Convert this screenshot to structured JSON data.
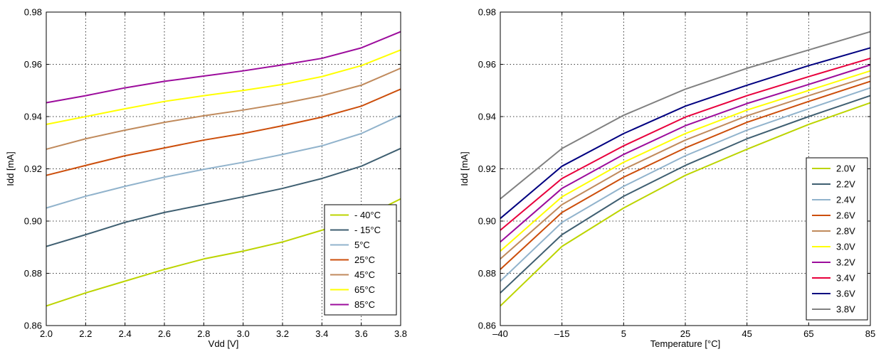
{
  "chart_data": [
    {
      "type": "line",
      "xlabel": "Vdd [V]",
      "ylabel": "Idd [mA]",
      "xlim": [
        2.0,
        3.8
      ],
      "ylim": [
        0.86,
        0.98
      ],
      "x_scale": "linear",
      "x_ticks": [
        "2.0",
        "2.2",
        "2.4",
        "2.6",
        "2.8",
        "3.0",
        "3.2",
        "3.4",
        "3.6",
        "3.8"
      ],
      "y_ticks": [
        "0.86",
        "0.88",
        "0.90",
        "0.92",
        "0.94",
        "0.96",
        "0.98"
      ],
      "x": [
        2.0,
        2.2,
        2.4,
        2.6,
        2.8,
        3.0,
        3.2,
        3.4,
        3.6,
        3.8
      ],
      "grid": true,
      "legend_position": "bottom-right",
      "series": [
        {
          "name": "- 40°C",
          "color": "#bcd400",
          "values": [
            0.8675,
            0.8725,
            0.877,
            0.8815,
            0.8855,
            0.8885,
            0.892,
            0.8965,
            0.901,
            0.9085
          ]
        },
        {
          "name": "- 15°C",
          "color": "#3f5f71",
          "values": [
            0.8903,
            0.8948,
            0.8995,
            0.9033,
            0.9063,
            0.9093,
            0.9125,
            0.9163,
            0.921,
            0.9278
          ]
        },
        {
          "name": "5°C",
          "color": "#91b3cc",
          "values": [
            0.905,
            0.9095,
            0.9133,
            0.9168,
            0.9198,
            0.9225,
            0.9255,
            0.9288,
            0.9335,
            0.9405
          ]
        },
        {
          "name": "25°C",
          "color": "#cc4e0b",
          "values": [
            0.9175,
            0.9213,
            0.925,
            0.928,
            0.931,
            0.9335,
            0.9365,
            0.9398,
            0.944,
            0.9505
          ]
        },
        {
          "name": "45°C",
          "color": "#c08a5c",
          "values": [
            0.9275,
            0.9315,
            0.9348,
            0.9378,
            0.9403,
            0.9425,
            0.945,
            0.948,
            0.952,
            0.9585
          ]
        },
        {
          "name": "65°C",
          "color": "#ffff00",
          "values": [
            0.937,
            0.94,
            0.943,
            0.9458,
            0.948,
            0.95,
            0.9523,
            0.9553,
            0.9595,
            0.9655
          ]
        },
        {
          "name": "85°C",
          "color": "#9c0c9c",
          "values": [
            0.9453,
            0.948,
            0.951,
            0.9535,
            0.9555,
            0.9575,
            0.9598,
            0.9623,
            0.9663,
            0.9725
          ]
        }
      ]
    },
    {
      "type": "line",
      "xlabel": "Temperature [°C]",
      "ylabel": "Idd [mA]",
      "xlim": [
        -40,
        85
      ],
      "ylim": [
        0.86,
        0.98
      ],
      "x_scale": "categorical (evenly spaced)",
      "categories": [
        "–40",
        "–15",
        "5",
        "25",
        "45",
        "65",
        "85"
      ],
      "y_ticks": [
        "0.86",
        "0.88",
        "0.90",
        "0.92",
        "0.94",
        "0.96",
        "0.98"
      ],
      "grid": true,
      "legend_position": "bottom-right",
      "series": [
        {
          "name": "2.0V",
          "color": "#bcd400",
          "values": [
            0.8675,
            0.8903,
            0.905,
            0.9175,
            0.9275,
            0.937,
            0.9453
          ]
        },
        {
          "name": "2.2V",
          "color": "#3f5f71",
          "values": [
            0.8725,
            0.8948,
            0.9095,
            0.9213,
            0.9315,
            0.94,
            0.948
          ]
        },
        {
          "name": "2.4V",
          "color": "#91b3cc",
          "values": [
            0.877,
            0.8995,
            0.9133,
            0.925,
            0.9348,
            0.943,
            0.951
          ]
        },
        {
          "name": "2.6V",
          "color": "#cc4e0b",
          "values": [
            0.8815,
            0.9033,
            0.9168,
            0.928,
            0.9378,
            0.9458,
            0.9535
          ]
        },
        {
          "name": "2.8V",
          "color": "#c08a5c",
          "values": [
            0.8855,
            0.9063,
            0.9198,
            0.931,
            0.9403,
            0.948,
            0.9555
          ]
        },
        {
          "name": "3.0V",
          "color": "#ffff00",
          "values": [
            0.8885,
            0.9093,
            0.9225,
            0.9335,
            0.9425,
            0.95,
            0.9575
          ]
        },
        {
          "name": "3.2V",
          "color": "#9c0c9c",
          "values": [
            0.892,
            0.9125,
            0.9255,
            0.9365,
            0.945,
            0.9523,
            0.9598
          ]
        },
        {
          "name": "3.4V",
          "color": "#e8003c",
          "values": [
            0.8965,
            0.9163,
            0.9288,
            0.9398,
            0.948,
            0.9553,
            0.9623
          ]
        },
        {
          "name": "3.6V",
          "color": "#000080",
          "values": [
            0.901,
            0.921,
            0.9335,
            0.944,
            0.952,
            0.9595,
            0.9663
          ]
        },
        {
          "name": "3.8V",
          "color": "#808080",
          "values": [
            0.9085,
            0.9278,
            0.9405,
            0.9505,
            0.9585,
            0.9655,
            0.9725
          ]
        }
      ]
    }
  ]
}
